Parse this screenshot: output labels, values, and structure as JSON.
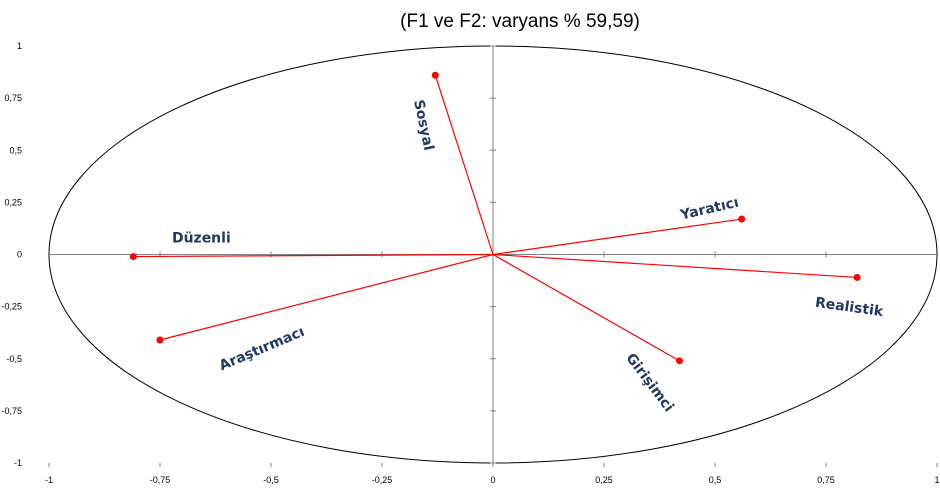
{
  "chart_data": {
    "type": "scatter",
    "title": "(F1 ve F2: varyans % 59,59)",
    "xlabel": "",
    "ylabel": "",
    "xlim": [
      -1,
      1
    ],
    "ylim": [
      -1,
      1
    ],
    "x_ticks": [
      "-1",
      "-0,75",
      "-0,5",
      "-0,25",
      "0",
      "0,25",
      "0,5",
      "0,75",
      "1"
    ],
    "y_ticks": [
      "1",
      "0,75",
      "0,5",
      "0,25",
      "0",
      "-0,25",
      "-0,5",
      "-0,75",
      "-1"
    ],
    "grid": false,
    "series": [
      {
        "points": [
          {
            "label": "Sosyal",
            "x": -0.13,
            "y": 0.86
          },
          {
            "label": "Yaratıcı",
            "x": 0.56,
            "y": 0.17
          },
          {
            "label": "Düzenli",
            "x": -0.81,
            "y": -0.01
          },
          {
            "label": "Realistik",
            "x": 0.82,
            "y": -0.11
          },
          {
            "label": "Araştırmacı",
            "x": -0.75,
            "y": -0.41
          },
          {
            "label": "Girişimci",
            "x": 0.42,
            "y": -0.51
          }
        ]
      }
    ],
    "colors": {
      "vector": "#ff0000",
      "label": "#1f3864",
      "circle": "#000000",
      "axis": "#808080"
    }
  }
}
